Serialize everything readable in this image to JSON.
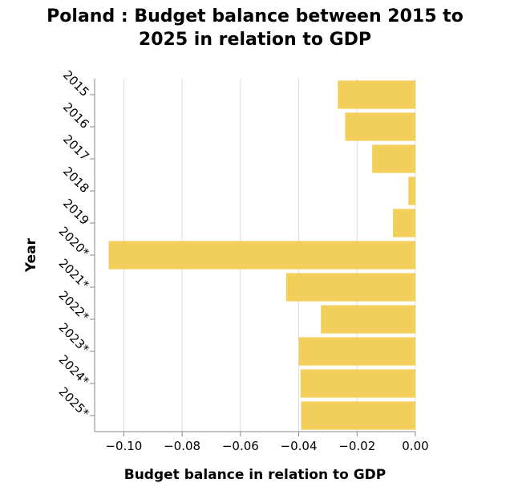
{
  "chart_data": {
    "type": "bar",
    "orientation": "horizontal",
    "title_lines": [
      "Poland : Budget balance between 2015 to",
      "2025 in relation to GDP"
    ],
    "xlabel": "Budget balance in relation to GDP",
    "ylabel": "Year",
    "categories": [
      "2015",
      "2016",
      "2017",
      "2018",
      "2019",
      "2020*",
      "2021*",
      "2022*",
      "2023*",
      "2024*",
      "2025*"
    ],
    "values": [
      -0.0266,
      -0.0241,
      -0.0148,
      -0.0024,
      -0.0077,
      -0.1052,
      -0.0443,
      -0.0324,
      -0.04,
      -0.0394,
      -0.0392
    ],
    "xlim": [
      -0.11,
      0.0
    ],
    "xticks": [
      -0.1,
      -0.08,
      -0.06,
      -0.04,
      -0.02,
      0.0
    ],
    "xtick_labels": [
      "−0.10",
      "−0.08",
      "−0.06",
      "−0.04",
      "−0.02",
      "0.00"
    ],
    "grid": true,
    "bar_color": "#F2CF5B"
  }
}
